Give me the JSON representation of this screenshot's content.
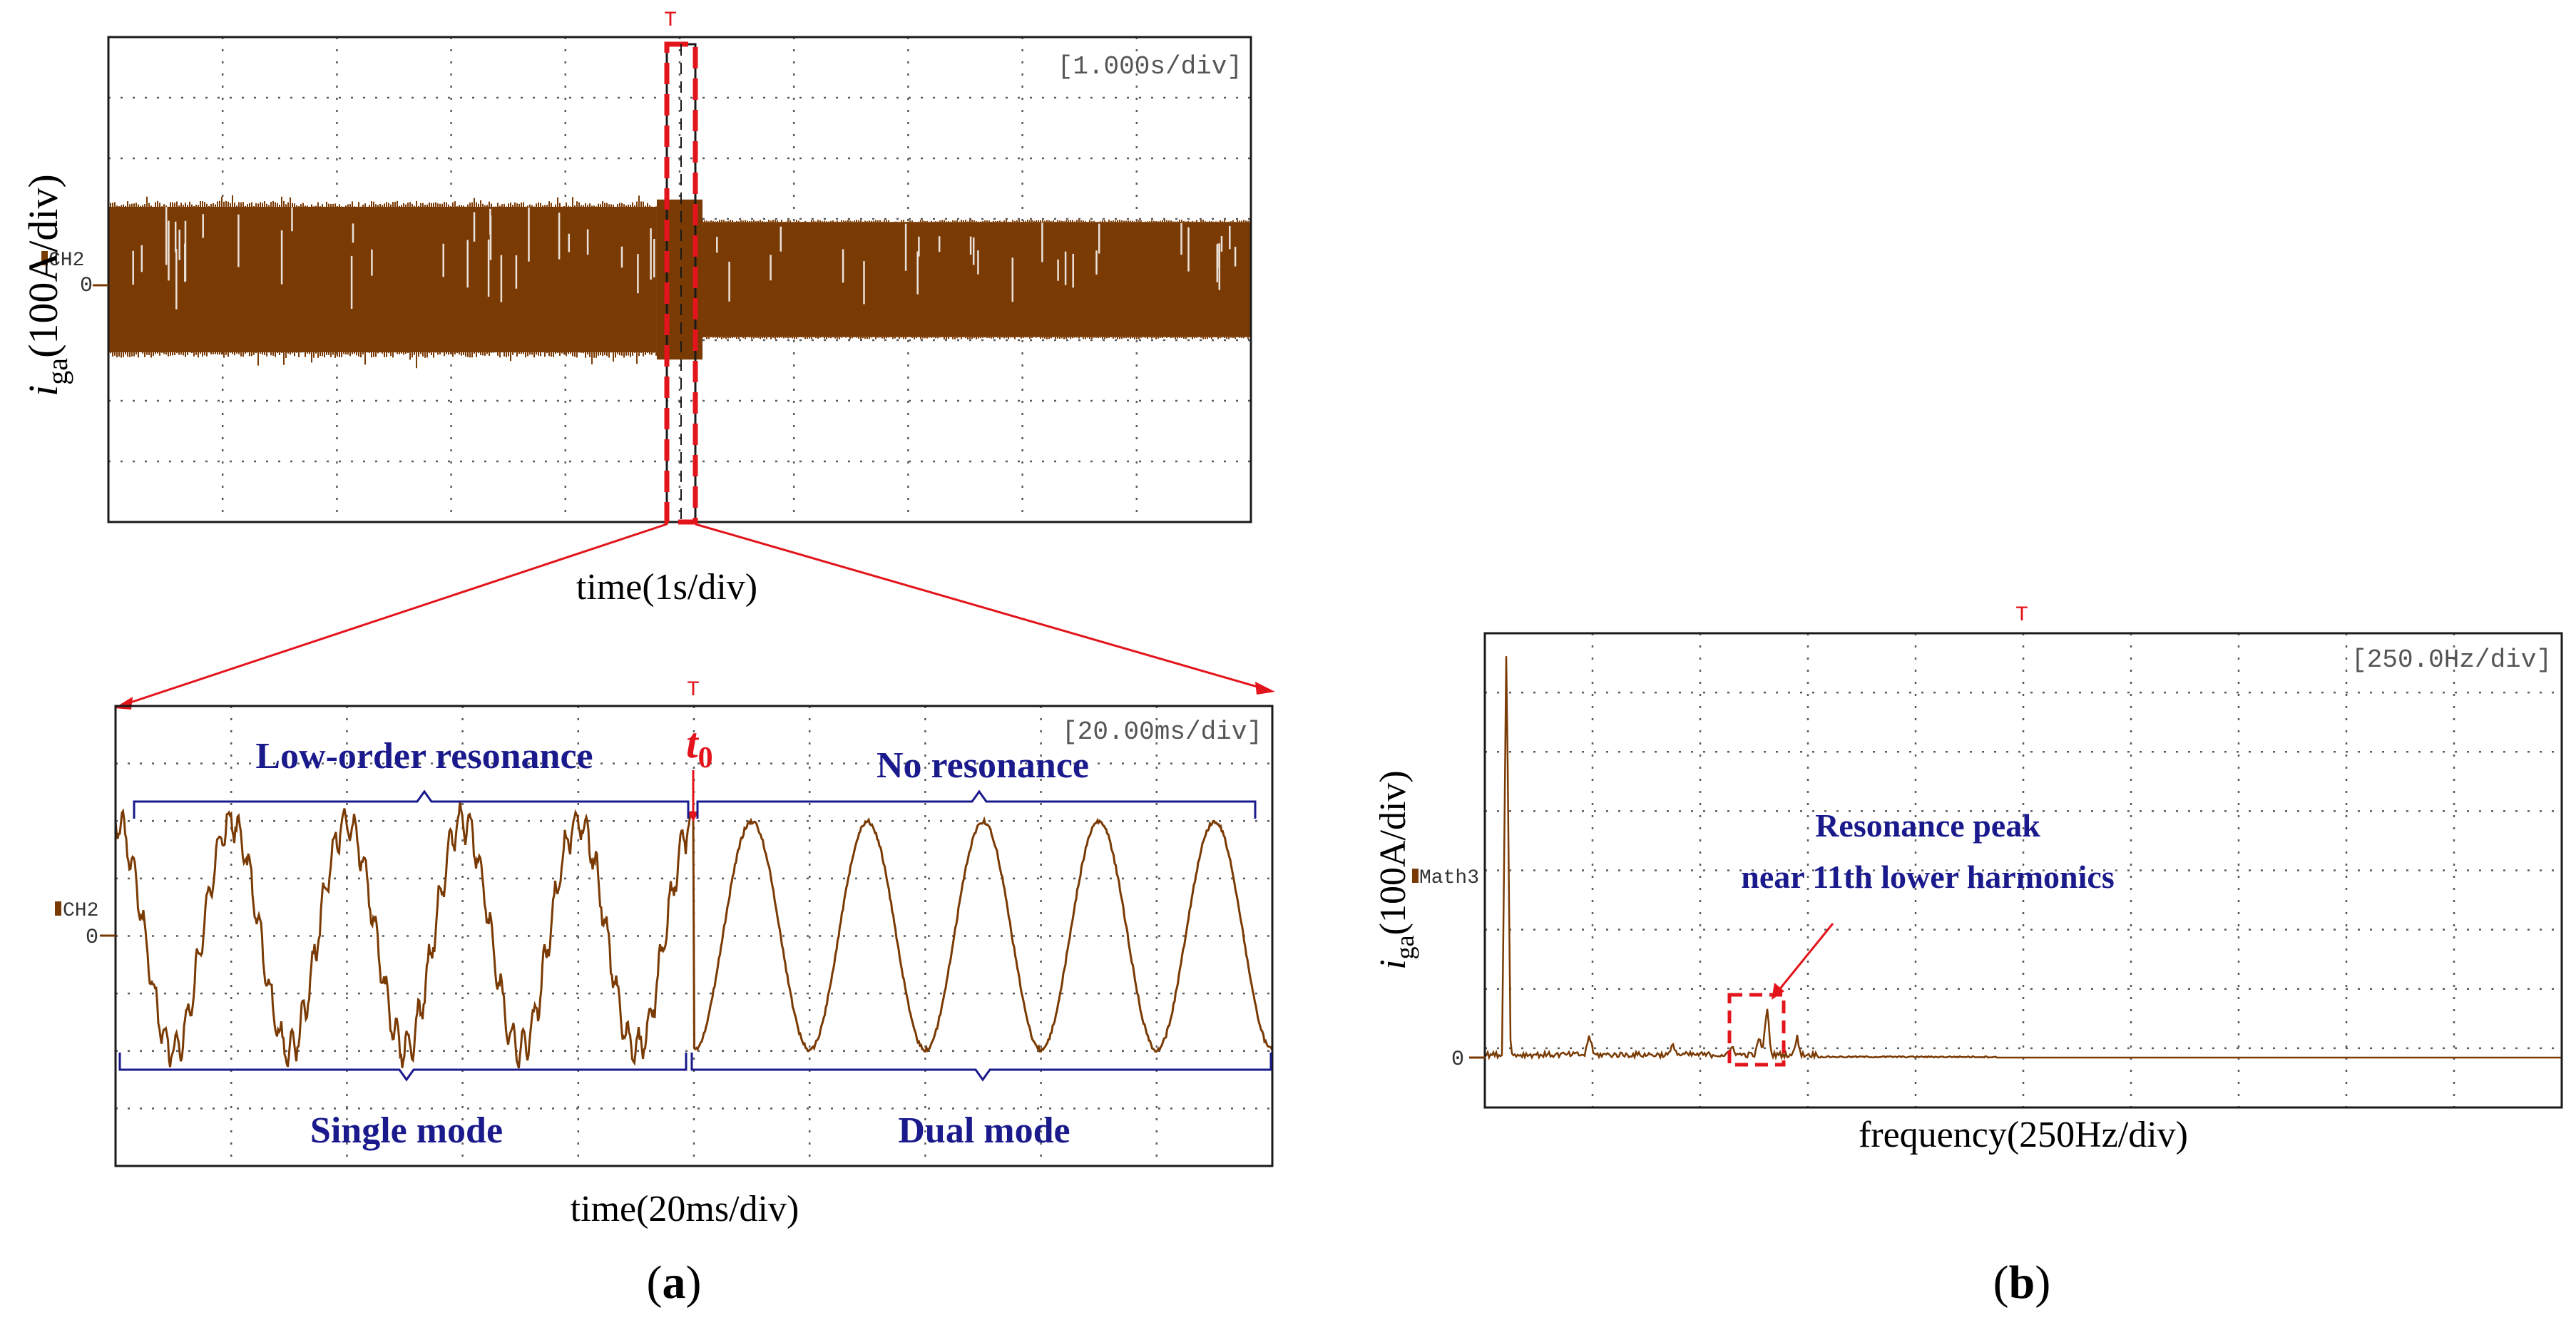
{
  "colors": {
    "trace": "#7a3a04",
    "annotation": "#1a1a8c",
    "highlight": "#e3141b",
    "grid": "#5a5a5a",
    "frame": "#1a1a1a"
  },
  "chart_data": [
    {
      "id": "a-top",
      "type": "line",
      "description_label": "",
      "scale_text": "[1.000s/div]",
      "xlabel": "time(1s/div)",
      "ylabel_main": "i",
      "ylabel_sub": "ga",
      "ylabel_unit": "(100A/div)",
      "channel_label": "CH2",
      "zero_label": "0",
      "trigger_marker": "T",
      "divisions": {
        "x": 10,
        "y": 8
      },
      "envelope": {
        "before_t0": {
          "x_range": [
            0,
            4.8
          ],
          "amplitude_div": 1.2
        },
        "after_t0": {
          "x_range": [
            5.2,
            10
          ],
          "amplitude_div": 0.95
        }
      },
      "zoom_box_x": [
        4.8,
        5.2
      ]
    },
    {
      "id": "a-bottom",
      "type": "line",
      "scale_text": "[20.00ms/div]",
      "xlabel": "time(20ms/div)",
      "channel_label": "CH2",
      "zero_label": "0",
      "trigger_marker": "T",
      "t0_label_main": "t",
      "t0_label_sub": "0",
      "divisions": {
        "x": 10,
        "y": 8
      },
      "annotations": {
        "top_left": "Low-order resonance",
        "top_right": "No resonance",
        "bottom_left": "Single mode",
        "bottom_right": "Dual mode"
      },
      "sine_cycles": {
        "before_t0": 5,
        "after_t0": 5
      },
      "t0_x_div": 5.0
    },
    {
      "id": "b",
      "type": "line",
      "scale_text": "[250.0Hz/div]",
      "xlabel": "frequency(250Hz/div)",
      "ylabel_main": "i",
      "ylabel_sub": "ga",
      "ylabel_unit": "(100A/div)",
      "channel_label": "Math3",
      "zero_label": "0",
      "trigger_marker": "T",
      "divisions": {
        "x": 10,
        "y": 8
      },
      "peaks": [
        {
          "x_div": 0.2,
          "height_div": 7.0
        },
        {
          "x_div": 0.97,
          "height_div": 0.35
        },
        {
          "x_div": 1.75,
          "height_div": 0.18
        },
        {
          "x_div": 2.3,
          "height_div": 0.15
        },
        {
          "x_div": 2.55,
          "height_div": 0.3
        },
        {
          "x_div": 2.62,
          "height_div": 0.85
        },
        {
          "x_div": 2.9,
          "height_div": 0.3
        }
      ],
      "annotation_line1": "Resonance peak",
      "annotation_line2": "near 11th lower harmonics"
    }
  ],
  "captions": {
    "a": {
      "open": "(",
      "letter": "a",
      "close": ")"
    },
    "b": {
      "open": "(",
      "letter": "b",
      "close": ")"
    }
  }
}
